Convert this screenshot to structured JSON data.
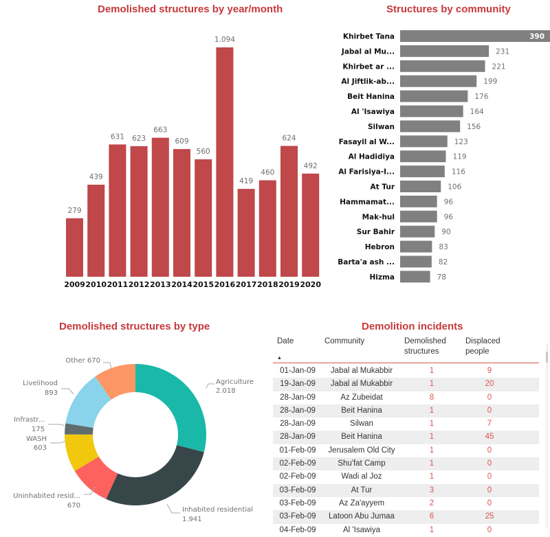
{
  "chart_data": [
    {
      "type": "bar",
      "title": "Demolished structures by year/month",
      "xlabel": "",
      "ylabel": "",
      "categories": [
        "2009",
        "2010",
        "2011",
        "2012",
        "2013",
        "2014",
        "2015",
        "2016",
        "2017",
        "2018",
        "2019",
        "2020"
      ],
      "values": [
        279,
        439,
        631,
        623,
        663,
        609,
        560,
        1094,
        419,
        460,
        624,
        492
      ],
      "value_labels": [
        "279",
        "439",
        "631",
        "623",
        "663",
        "609",
        "560",
        "1.094",
        "419",
        "460",
        "624",
        "492"
      ],
      "ylim": [
        0,
        1094
      ],
      "grid": false,
      "color": "#c0474a"
    },
    {
      "type": "bar",
      "orientation": "horizontal",
      "title": "Structures by community",
      "categories": [
        "Khirbet Tana",
        "Jabal al Mu...",
        "Khirbet ar ...",
        "Al Jiftlik-ab...",
        "Beit Hanina",
        "Al 'Isawiya",
        "Silwan",
        "Fasayil al W...",
        "Al Hadidiya",
        "Al Farisiya-I...",
        "At Tur",
        "Hammamat...",
        "Mak-hul",
        "Sur Bahir",
        "Hebron",
        "Barta'a ash ...",
        "Hizma"
      ],
      "values": [
        390,
        231,
        221,
        199,
        176,
        164,
        156,
        123,
        119,
        116,
        106,
        96,
        96,
        90,
        83,
        82,
        78
      ],
      "xlim": [
        0,
        390
      ],
      "grid": false,
      "color": "#808080"
    },
    {
      "type": "pie",
      "variant": "donut",
      "title": "Demolished structures by type",
      "slices": [
        {
          "name": "Agriculture",
          "label": "Agriculture",
          "value_label": "2.018",
          "value": 2018,
          "color": "#1ab8a8"
        },
        {
          "name": "Inhabited residential",
          "label": "Inhabited residential",
          "value_label": "1.941",
          "value": 1941,
          "color": "#374649"
        },
        {
          "name": "Uninhabited residential",
          "label": "Uninhabited resid...",
          "value_label": "670",
          "value": 670,
          "color": "#fd625e"
        },
        {
          "name": "WASH",
          "label": "WASH",
          "value_label": "603",
          "value": 603,
          "color": "#f2c80f"
        },
        {
          "name": "Infrastructure",
          "label": "Infrastr...",
          "value_label": "175",
          "value": 175,
          "color": "#5f6b6d"
        },
        {
          "name": "Livelihood",
          "label": "Livelihood",
          "value_label": "893",
          "value": 893,
          "color": "#8ad4eb"
        },
        {
          "name": "Other",
          "label": "Other 670",
          "value_label": "",
          "value": 670,
          "color": "#fe9666"
        }
      ]
    },
    {
      "type": "table",
      "title": "Demolition incidents",
      "columns": [
        "Date",
        "Community",
        "Demolished structures",
        "Displaced people"
      ],
      "rows": [
        [
          "01-Jan-09",
          "Jabal al Mukabbir",
          "1",
          "9"
        ],
        [
          "19-Jan-09",
          "Jabal al Mukabbir",
          "1",
          "20"
        ],
        [
          "28-Jan-09",
          "Az Zubeidat",
          "8",
          "0"
        ],
        [
          "28-Jan-09",
          "Beit Hanina",
          "1",
          "0"
        ],
        [
          "28-Jan-09",
          "Silwan",
          "1",
          "7"
        ],
        [
          "28-Jan-09",
          "Beit Hanina",
          "1",
          "45"
        ],
        [
          "01-Feb-09",
          "Jerusalem Old City",
          "1",
          "0"
        ],
        [
          "02-Feb-09",
          "Shu'fat Camp",
          "1",
          "0"
        ],
        [
          "02-Feb-09",
          "Wadi al Joz",
          "1",
          "0"
        ],
        [
          "03-Feb-09",
          "At Tur",
          "3",
          "0"
        ],
        [
          "03-Feb-09",
          "Az Za'ayyem",
          "2",
          "0"
        ],
        [
          "03-Feb-09",
          "Latoon Abu Jumaa",
          "6",
          "25"
        ],
        [
          "04-Feb-09",
          "Al 'Isawiya",
          "1",
          "0"
        ]
      ]
    }
  ],
  "titles": {
    "year": "Demolished structures by year/month",
    "community": "Structures by community",
    "type": "Demolished structures by type",
    "incidents": "Demolition incidents"
  },
  "table": {
    "headers": {
      "date": "Date",
      "community": "Community",
      "demolished_l1": "Demolished",
      "demolished_l2": "structures",
      "displaced_l1": "Displaced",
      "displaced_l2": "people"
    },
    "sort_indicator": "▲",
    "sort_icon": "sort-ascending-icon"
  }
}
